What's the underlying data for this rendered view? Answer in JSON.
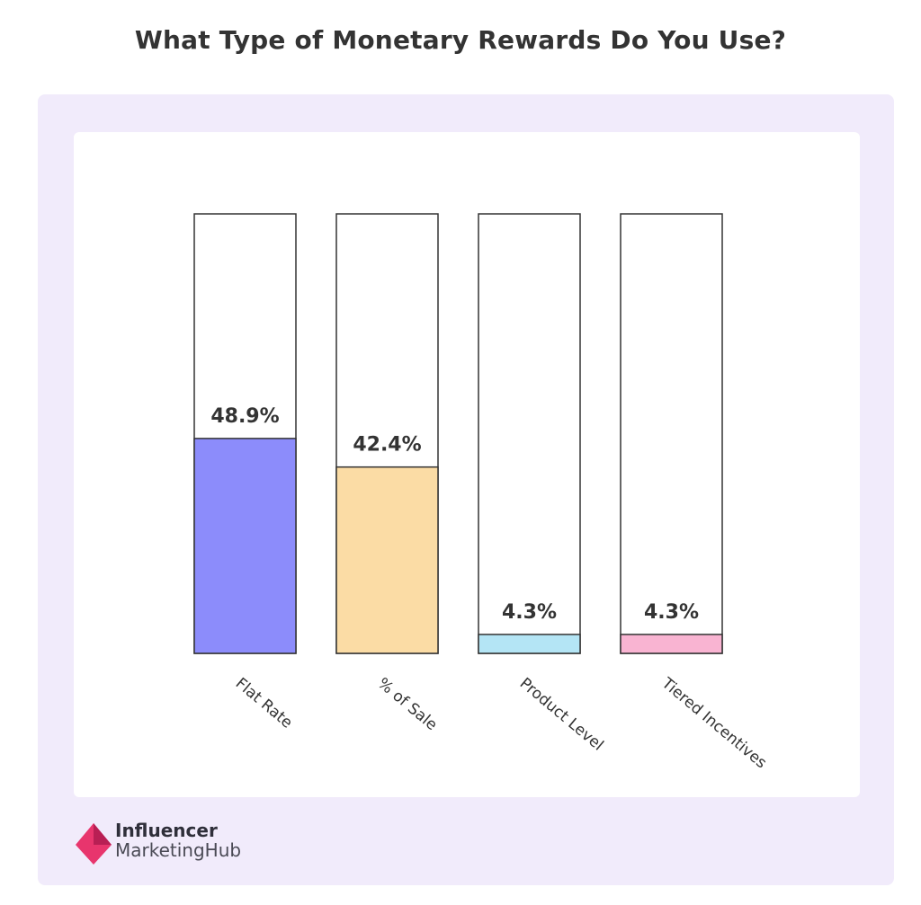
{
  "colors": {
    "panel_bg": "#f1ebfb",
    "bar_colors": [
      "#8c8cfb",
      "#fbdca5",
      "#b4e5f5",
      "#f9b4d2"
    ],
    "logo_pink": "#e8356d"
  },
  "chart_data": {
    "type": "bar",
    "title": "What Type of Monetary Rewards Do You Use?",
    "categories": [
      "Flat Rate",
      "% of Sale",
      "Product Level",
      "Tiered Incentives"
    ],
    "values": [
      48.9,
      42.4,
      4.3,
      4.3
    ],
    "value_labels": [
      "48.9%",
      "42.4%",
      "4.3%",
      "4.3%"
    ],
    "ylim": [
      0,
      100
    ],
    "grid": false,
    "legend": "none"
  },
  "logo": {
    "line1": "Influencer",
    "line2": "MarketingHub",
    "icon": "pink-diamond-logo-icon"
  }
}
